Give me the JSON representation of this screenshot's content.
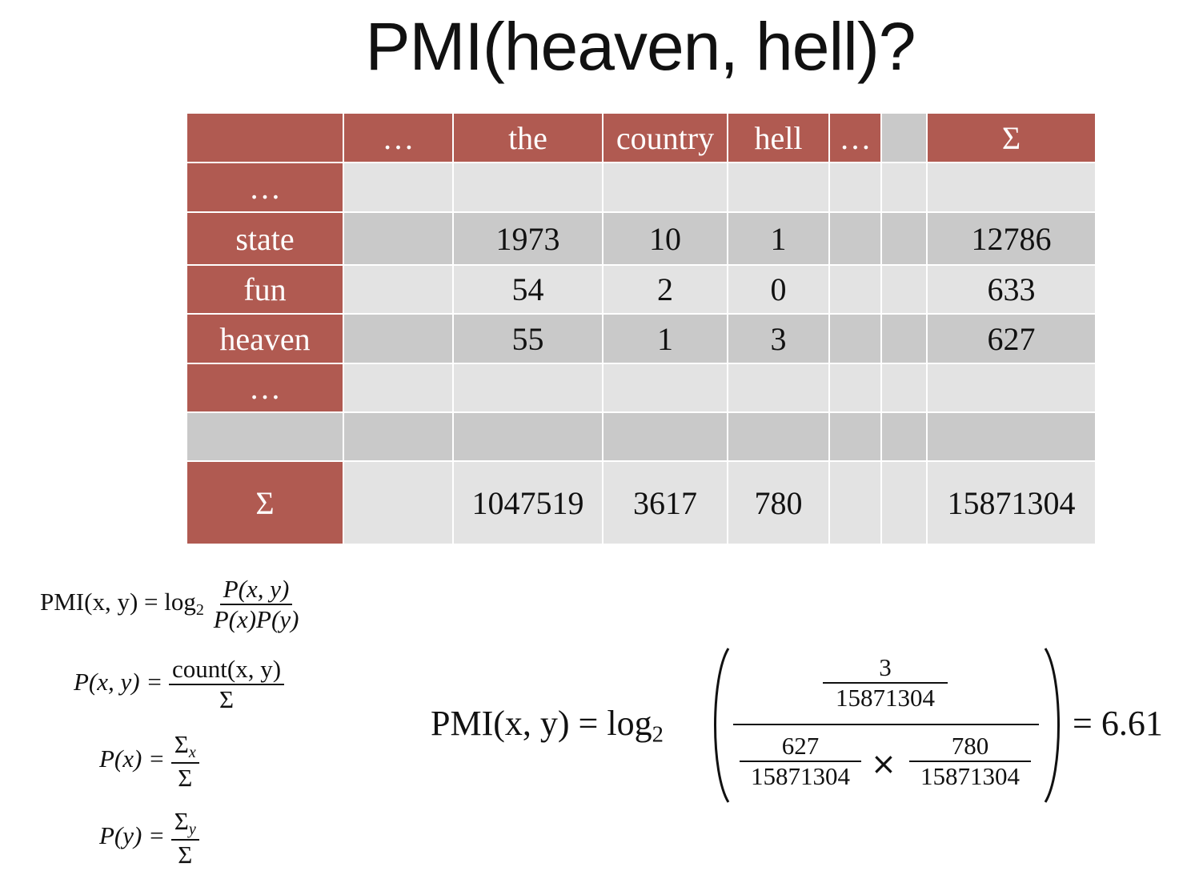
{
  "title": "PMI(heaven, hell)?",
  "colors": {
    "header_bg": "#b05a51",
    "header_text": "#ffffff",
    "cell_light": "#e3e3e3",
    "cell_dark": "#c9c9c9"
  },
  "table": {
    "columns": [
      "",
      "…",
      "the",
      "country",
      "hell",
      "…",
      "",
      "Σ"
    ],
    "rows": [
      {
        "label": "…",
        "cells": [
          "",
          "",
          "",
          "",
          "",
          "",
          ""
        ]
      },
      {
        "label": "state",
        "cells": [
          "",
          "1973",
          "10",
          "1",
          "",
          "",
          "12786"
        ]
      },
      {
        "label": "fun",
        "cells": [
          "",
          "54",
          "2",
          "0",
          "",
          "",
          "633"
        ]
      },
      {
        "label": "heaven",
        "cells": [
          "",
          "55",
          "1",
          "3",
          "",
          "",
          "627"
        ]
      },
      {
        "label": "…",
        "cells": [
          "",
          "",
          "",
          "",
          "",
          "",
          ""
        ]
      },
      {
        "label": "",
        "cells": [
          "",
          "",
          "",
          "",
          "",
          "",
          ""
        ]
      },
      {
        "label": "Σ",
        "cells": [
          "",
          "1047519",
          "3617",
          "780",
          "",
          "",
          "15871304"
        ]
      }
    ]
  },
  "formulas": {
    "pmi_lhs": "PMI(x, y) =",
    "log2": "log",
    "log_base": "2",
    "pmi_num": "P(x, y)",
    "pmi_den": "P(x)P(y)",
    "pxy_lhs": "P(x, y) =",
    "pxy_num": "count(x, y)",
    "pxy_den": "Σ",
    "px_lhs": "P(x) =",
    "px_num_base": "Σ",
    "px_num_sub": "x",
    "px_den": "Σ",
    "py_lhs": "P(y) =",
    "py_num_base": "Σ",
    "py_num_sub": "y",
    "py_den": "Σ"
  },
  "calculation": {
    "lhs": "PMI(x, y) =",
    "log": "log",
    "log_base": "2",
    "joint_count": "3",
    "total": "15871304",
    "x_count": "627",
    "y_count": "780",
    "times": "×",
    "result": "= 6.61"
  }
}
